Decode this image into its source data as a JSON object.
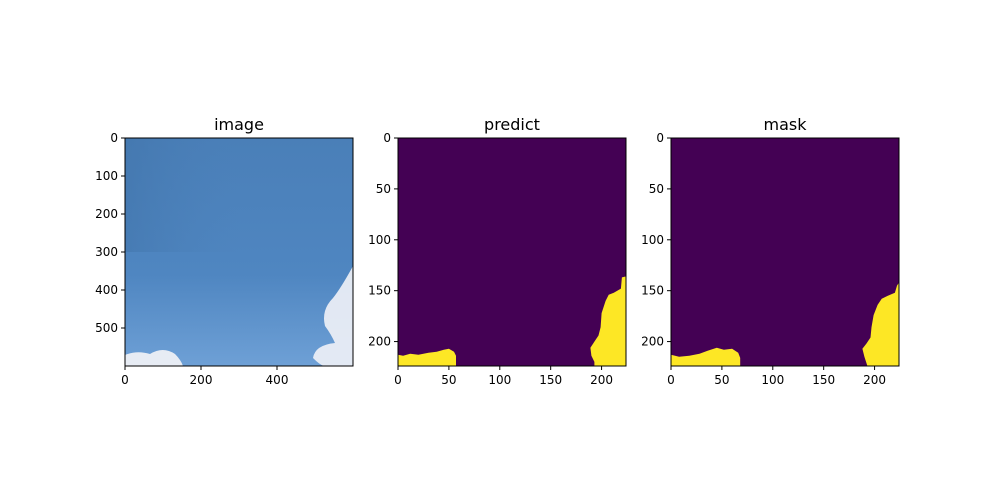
{
  "chart_data": [
    {
      "type": "image",
      "title": "image",
      "xlim": [
        0,
        600
      ],
      "ylim": [
        0,
        600
      ],
      "x_ticks": [
        0,
        200,
        400
      ],
      "y_ticks": [
        0,
        100,
        200,
        300,
        400,
        500
      ],
      "content": "sky photo: blue gradient with white clouds at bottom-left and right edge",
      "colors": {
        "sky_top": "#4a7fb8",
        "sky_bottom": "#6ea0d6",
        "cloud": "#eef0f6"
      }
    },
    {
      "type": "heatmap",
      "title": "predict",
      "xlim": [
        0,
        224
      ],
      "ylim": [
        0,
        224
      ],
      "x_ticks": [
        0,
        50,
        100,
        150,
        200
      ],
      "y_ticks": [
        0,
        50,
        100,
        150,
        200
      ],
      "colors": {
        "background": "#440154",
        "foreground": "#fde725"
      },
      "regions": [
        {
          "name": "bottom-left blob",
          "points": [
            [
              0,
              213
            ],
            [
              5,
              214
            ],
            [
              12,
              212
            ],
            [
              20,
              213
            ],
            [
              30,
              211
            ],
            [
              38,
              210
            ],
            [
              45,
              208
            ],
            [
              50,
              207
            ],
            [
              55,
              210
            ],
            [
              57,
              214
            ],
            [
              57,
              224
            ],
            [
              0,
              224
            ]
          ]
        },
        {
          "name": "right-edge blob",
          "points": [
            [
              224,
              136
            ],
            [
              220,
              137
            ],
            [
              219,
              148
            ],
            [
              212,
              152
            ],
            [
              207,
              154
            ],
            [
              204,
              160
            ],
            [
              200,
              172
            ],
            [
              199,
              186
            ],
            [
              197,
              194
            ],
            [
              193,
              200
            ],
            [
              189,
              206
            ],
            [
              190,
              214
            ],
            [
              193,
              220
            ],
            [
              193,
              224
            ],
            [
              224,
              224
            ]
          ]
        }
      ]
    },
    {
      "type": "heatmap",
      "title": "mask",
      "xlim": [
        0,
        224
      ],
      "ylim": [
        0,
        224
      ],
      "x_ticks": [
        0,
        50,
        100,
        150,
        200
      ],
      "y_ticks": [
        0,
        50,
        100,
        150,
        200
      ],
      "colors": {
        "background": "#440154",
        "foreground": "#fde725"
      },
      "regions": [
        {
          "name": "bottom-left blob",
          "points": [
            [
              0,
              213
            ],
            [
              8,
              215
            ],
            [
              18,
              214
            ],
            [
              28,
              212
            ],
            [
              36,
              209
            ],
            [
              45,
              206
            ],
            [
              52,
              208
            ],
            [
              60,
              207
            ],
            [
              66,
              211
            ],
            [
              68,
              216
            ],
            [
              68,
              224
            ],
            [
              0,
              224
            ]
          ]
        },
        {
          "name": "right-edge blob",
          "points": [
            [
              224,
              142
            ],
            [
              222,
              145
            ],
            [
              220,
              152
            ],
            [
              213,
              155
            ],
            [
              207,
              158
            ],
            [
              203,
              164
            ],
            [
              199,
              174
            ],
            [
              197,
              186
            ],
            [
              196,
              196
            ],
            [
              192,
              202
            ],
            [
              188,
              207
            ],
            [
              190,
              215
            ],
            [
              193,
              224
            ],
            [
              224,
              224
            ]
          ]
        }
      ]
    }
  ]
}
